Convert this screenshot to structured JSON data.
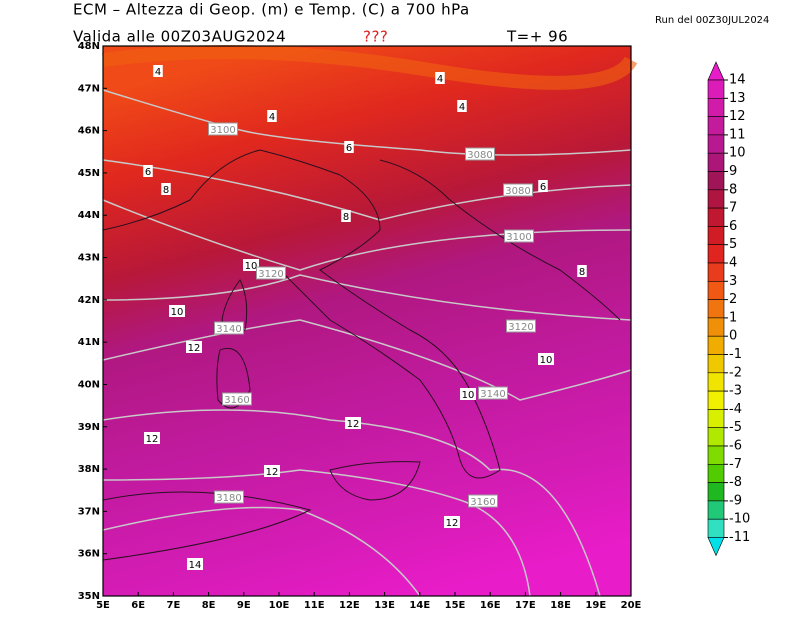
{
  "header": {
    "title": "ECM – Altezza di Geop. (m) e Temp. (C) a 700 hPa",
    "valid": "Valida alle 00Z03AUG2024",
    "flag": "???",
    "step": "T=+ 96",
    "run": "Run del 00Z30JUL2024"
  },
  "map": {
    "lon_labels": [
      "5E",
      "6E",
      "7E",
      "8E",
      "9E",
      "10E",
      "11E",
      "12E",
      "13E",
      "14E",
      "15E",
      "16E",
      "17E",
      "18E",
      "19E",
      "20E"
    ],
    "lat_labels": [
      "48N",
      "47N",
      "46N",
      "45N",
      "44N",
      "43N",
      "42N",
      "41N",
      "40N",
      "39N",
      "38N",
      "37N",
      "36N",
      "35N"
    ],
    "contour_labels": [
      4,
      4,
      4,
      4,
      3100,
      6,
      3080,
      6,
      8,
      3080,
      6,
      8,
      3100,
      10,
      3120,
      8,
      10,
      3140,
      3120,
      12,
      10,
      10,
      3140,
      3160,
      12,
      12,
      12,
      3180,
      3160,
      12,
      14
    ]
  },
  "colorbar": {
    "labels": [
      14,
      13,
      12,
      11,
      10,
      9,
      8,
      7,
      6,
      5,
      4,
      3,
      2,
      1,
      0,
      -1,
      -2,
      -3,
      -4,
      -5,
      -6,
      -7,
      -8,
      -9,
      -10,
      -11
    ],
    "colors": [
      "#e81cc8",
      "#dc1cb8",
      "#d01ca8",
      "#c41a9c",
      "#b81890",
      "#ac1678",
      "#a01458",
      "#b01440",
      "#c01830",
      "#d01c24",
      "#e02420",
      "#e83c1c",
      "#f05814",
      "#f07410",
      "#f09008",
      "#f0ac00",
      "#f0c800",
      "#f0e400",
      "#f0f000",
      "#d8f000",
      "#b0e800",
      "#80dc00",
      "#50cc00",
      "#20b820",
      "#20c878",
      "#30e0c0",
      "#00e0e8"
    ]
  }
}
